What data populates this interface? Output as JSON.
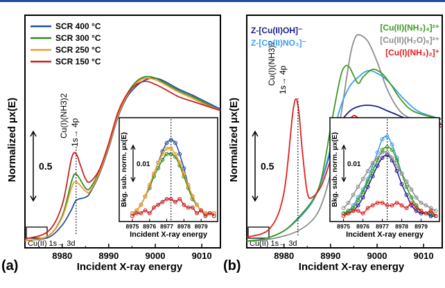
{
  "chart_data": [
    {
      "panel": "(a)",
      "type": "line",
      "xlabel": "Incident X-ray energy",
      "ylabel": "Normalized µx(E)",
      "xticks": [
        8980,
        8990,
        9000,
        9010
      ],
      "xlim": [
        8972,
        9014
      ],
      "scale_bar": "0.5",
      "annotations": {
        "peak": "Cu(I)(NH3)2",
        "transition": "1s→ 4p",
        "preedge": "Cu(II) 1s→ 3d"
      },
      "legend": [
        "SCR 400 °C",
        "SCR 300 °C",
        "SCR 250 °C",
        "SCR 150 °C"
      ],
      "series": [
        {
          "name": "SCR 400 °C",
          "color": "#1f4ea0",
          "x": [
            8972,
            8977,
            8980,
            8982,
            8983,
            8985,
            8986,
            8988,
            8990,
            8992,
            8994,
            8996,
            8998,
            9000,
            9002,
            9005,
            9008,
            9010,
            9014
          ],
          "y": [
            0.02,
            0.04,
            0.12,
            0.22,
            0.28,
            0.3,
            0.33,
            0.45,
            0.62,
            0.82,
            0.95,
            1.02,
            1.06,
            1.07,
            1.05,
            1.0,
            0.96,
            0.93,
            0.87
          ]
        },
        {
          "name": "SCR 300 °C",
          "color": "#2e8b1e",
          "x": [
            8972,
            8977,
            8980,
            8982,
            8983,
            8985,
            8986,
            8988,
            8990,
            8992,
            8994,
            8996,
            8998,
            9000,
            9002,
            9005,
            9008,
            9010,
            9014
          ],
          "y": [
            0.02,
            0.05,
            0.18,
            0.4,
            0.45,
            0.36,
            0.36,
            0.47,
            0.64,
            0.84,
            0.97,
            1.05,
            1.08,
            1.07,
            1.04,
            0.99,
            0.95,
            0.92,
            0.86
          ]
        },
        {
          "name": "SCR 250 °C",
          "color": "#f0982a",
          "x": [
            8972,
            8977,
            8980,
            8982,
            8983,
            8985,
            8986,
            8988,
            8990,
            8992,
            8994,
            8996,
            8998,
            9000,
            9002,
            9005,
            9008,
            9010,
            9014
          ],
          "y": [
            0.02,
            0.05,
            0.17,
            0.36,
            0.4,
            0.34,
            0.34,
            0.46,
            0.63,
            0.83,
            0.96,
            1.04,
            1.07,
            1.06,
            1.03,
            0.98,
            0.94,
            0.91,
            0.86
          ]
        },
        {
          "name": "SCR 150 °C",
          "color": "#c81e1e",
          "x": [
            8972,
            8977,
            8980,
            8982,
            8983,
            8984,
            8985,
            8986,
            8988,
            8990,
            8992,
            8994,
            8996,
            8998,
            9000,
            9002,
            9005,
            9008,
            9010,
            9014
          ],
          "y": [
            0.03,
            0.08,
            0.25,
            0.55,
            0.58,
            0.5,
            0.42,
            0.4,
            0.48,
            0.65,
            0.85,
            0.97,
            1.03,
            1.05,
            1.03,
            1.0,
            0.95,
            0.92,
            0.9,
            0.86
          ]
        }
      ],
      "inset": {
        "xlabel": "Incident X-ray energy",
        "ylabel": "Bkg. sub. norm. µx(E)",
        "xticks": [
          8975,
          8976,
          8977,
          8978,
          8979
        ],
        "xlim": [
          8974.8,
          8979.8
        ],
        "scale_bar": "0.01",
        "x": [
          8975.0,
          8975.25,
          8975.5,
          8975.75,
          8976.0,
          8976.25,
          8976.5,
          8976.75,
          8977.0,
          8977.25,
          8977.5,
          8977.75,
          8978.0,
          8978.25,
          8978.5,
          8978.75,
          8979.0,
          8979.25,
          8979.5,
          8979.75
        ],
        "series": [
          {
            "name": "SCR 400 °C",
            "color": "#1f4ea0",
            "y": [
              0.001,
              0.002,
              0.004,
              0.007,
              0.011,
              0.015,
              0.019,
              0.023,
              0.026,
              0.027,
              0.026,
              0.022,
              0.017,
              0.011,
              0.007,
              0.004,
              0.002,
              0.001,
              0.001,
              0.001
            ]
          },
          {
            "name": "SCR 300 °C",
            "color": "#2e8b1e",
            "y": [
              0.001,
              0.002,
              0.004,
              0.007,
              0.01,
              0.014,
              0.017,
              0.02,
              0.022,
              0.022,
              0.021,
              0.018,
              0.014,
              0.01,
              0.006,
              0.004,
              0.002,
              0.001,
              0.001,
              0.001
            ]
          },
          {
            "name": "SCR 250 °C",
            "color": "#f0982a",
            "y": [
              0.001,
              0.002,
              0.004,
              0.007,
              0.011,
              0.015,
              0.019,
              0.022,
              0.024,
              0.024,
              0.022,
              0.019,
              0.015,
              0.011,
              0.007,
              0.004,
              0.002,
              0.001,
              0.001,
              0.001
            ]
          },
          {
            "name": "SCR 150 °C",
            "color": "#c81e1e",
            "y": [
              0.0,
              0.001,
              0.001,
              0.002,
              0.001,
              0.003,
              0.004,
              0.005,
              0.006,
              0.006,
              0.005,
              0.006,
              0.004,
              0.003,
              0.003,
              0.001,
              0.002,
              0.0,
              0.001,
              0.0
            ]
          }
        ]
      }
    },
    {
      "panel": "(b)",
      "type": "line",
      "xlabel": "Incident X-ray energy",
      "ylabel": "Normalized µx(E)",
      "xticks": [
        8980,
        8990,
        9000,
        9010
      ],
      "xlim": [
        8972,
        9014
      ],
      "scale_bar": "0.5",
      "annotations": {
        "peak": "Cu(I)(NH3)2",
        "transition": "1s→ 4p",
        "preedge": "Cu(II) 1s→ 3d"
      },
      "legend": [
        "Z-[Cu(II)OH]⁻",
        "Z-[Cu(II)NO₃]⁻",
        "[Cu(II)(NH₃)₄]²⁺",
        "[Cu(II)(H₂O)₆]²⁺",
        "[Cu(I)(NH₃)₂]⁺"
      ],
      "series": [
        {
          "name": "Z-[Cu(II)OH]⁻",
          "color": "#1c1c8c",
          "x": [
            8972,
            8976,
            8980,
            8983,
            8986,
            8988,
            8990,
            8992,
            8994,
            8996,
            8998,
            9000,
            9002,
            9004,
            9006,
            9009,
            9014
          ],
          "y": [
            0.02,
            0.04,
            0.1,
            0.2,
            0.33,
            0.48,
            0.72,
            0.93,
            1.03,
            1.07,
            1.08,
            1.07,
            1.04,
            1.01,
            0.98,
            0.95,
            0.93
          ]
        },
        {
          "name": "Z-[Cu(II)NO₃]⁻",
          "color": "#3aa0e6",
          "x": [
            8972,
            8976,
            8980,
            8983,
            8986,
            8988,
            8990,
            8992,
            8994,
            8996,
            8998,
            9000,
            9002,
            9004,
            9006,
            9009,
            9014
          ],
          "y": [
            0.02,
            0.04,
            0.1,
            0.19,
            0.32,
            0.48,
            0.75,
            1.05,
            1.22,
            1.3,
            1.35,
            1.33,
            1.28,
            1.2,
            1.12,
            1.03,
            0.97
          ]
        },
        {
          "name": "[Cu(II)(NH₃)₄]²⁺",
          "color": "#3a9a1e",
          "x": [
            8972,
            8976,
            8980,
            8983,
            8986,
            8988,
            8990,
            8992,
            8993,
            8994,
            8995,
            8996,
            8997,
            8999,
            9001,
            9003,
            9005,
            9008,
            9014
          ],
          "y": [
            0.02,
            0.04,
            0.1,
            0.2,
            0.33,
            0.5,
            0.9,
            1.28,
            1.38,
            1.38,
            1.31,
            1.25,
            1.3,
            1.36,
            1.33,
            1.24,
            1.13,
            1.03,
            0.97
          ]
        },
        {
          "name": "[Cu(II)(H₂O)₆]²⁺",
          "color": "#8c8c8c",
          "x": [
            8972,
            8976,
            8980,
            8983,
            8986,
            8988,
            8990,
            8992,
            8994,
            8995,
            8996,
            8998,
            9000,
            9002,
            9004,
            9006,
            9009,
            9014
          ],
          "y": [
            0.02,
            0.03,
            0.06,
            0.1,
            0.18,
            0.3,
            0.55,
            0.95,
            1.42,
            1.58,
            1.63,
            1.58,
            1.42,
            1.22,
            1.08,
            1.0,
            0.96,
            0.94
          ]
        },
        {
          "name": "[Cu(I)(NH₃)₂]⁺",
          "color": "#e01e1e",
          "x": [
            8972,
            8977,
            8980,
            8982,
            8983,
            8984,
            8985,
            8986,
            8988,
            8990,
            8992,
            8994,
            8995,
            8996,
            8998,
            9000,
            9004,
            9008,
            9014
          ],
          "y": [
            0.05,
            0.12,
            0.4,
            1.05,
            1.08,
            0.7,
            0.4,
            0.36,
            0.45,
            0.65,
            0.85,
            0.96,
            1.0,
            0.98,
            0.94,
            0.92,
            0.92,
            0.92,
            0.91
          ]
        }
      ],
      "inset": {
        "xlabel": "Incident X-ray energy",
        "ylabel": "Bkg. sub. norm. µx(E)",
        "xticks": [
          8975,
          8976,
          8977,
          8978,
          8979
        ],
        "xlim": [
          8974.8,
          8979.8
        ],
        "scale_bar": "0.01",
        "x": [
          8975.0,
          8975.25,
          8975.5,
          8975.75,
          8976.0,
          8976.25,
          8976.5,
          8976.75,
          8977.0,
          8977.25,
          8977.5,
          8977.75,
          8978.0,
          8978.25,
          8978.5,
          8978.75,
          8979.0,
          8979.25,
          8979.5,
          8979.75
        ],
        "series": [
          {
            "name": "Z-[Cu(II)OH]⁻",
            "color": "#1c1c8c",
            "y": [
              0.001,
              0.001,
              0.002,
              0.004,
              0.007,
              0.011,
              0.015,
              0.019,
              0.022,
              0.023,
              0.021,
              0.017,
              0.012,
              0.008,
              0.004,
              0.002,
              0.001,
              0.001,
              0.0,
              0.0
            ]
          },
          {
            "name": "Z-[Cu(II)NO₃]⁻",
            "color": "#3aa0e6",
            "y": [
              0.001,
              0.002,
              0.004,
              0.007,
              0.01,
              0.014,
              0.019,
              0.024,
              0.029,
              0.03,
              0.027,
              0.022,
              0.016,
              0.011,
              0.007,
              0.004,
              0.002,
              0.001,
              0.001,
              0.0
            ]
          },
          {
            "name": "[Cu(II)(NH₃)₄]²⁺",
            "color": "#3a9a1e",
            "y": [
              0.001,
              0.002,
              0.003,
              0.006,
              0.009,
              0.013,
              0.017,
              0.021,
              0.025,
              0.026,
              0.025,
              0.021,
              0.016,
              0.011,
              0.007,
              0.004,
              0.002,
              0.001,
              0.001,
              0.0
            ]
          },
          {
            "name": "[Cu(II)(H₂O)₆]²⁺",
            "color": "#8c8c8c",
            "y": [
              0.003,
              0.005,
              0.008,
              0.011,
              0.014,
              0.017,
              0.02,
              0.022,
              0.024,
              0.024,
              0.022,
              0.019,
              0.016,
              0.013,
              0.01,
              0.007,
              0.005,
              0.004,
              0.003,
              0.002
            ]
          },
          {
            "name": "[Cu(I)(NH₃)₂]⁺",
            "color": "#e01e1e",
            "y": [
              0.0,
              0.001,
              0.002,
              0.002,
              0.001,
              0.003,
              0.004,
              0.005,
              0.005,
              0.004,
              0.004,
              0.005,
              0.004,
              0.003,
              0.005,
              0.003,
              0.002,
              0.001,
              0.002,
              0.0
            ]
          }
        ]
      }
    }
  ]
}
